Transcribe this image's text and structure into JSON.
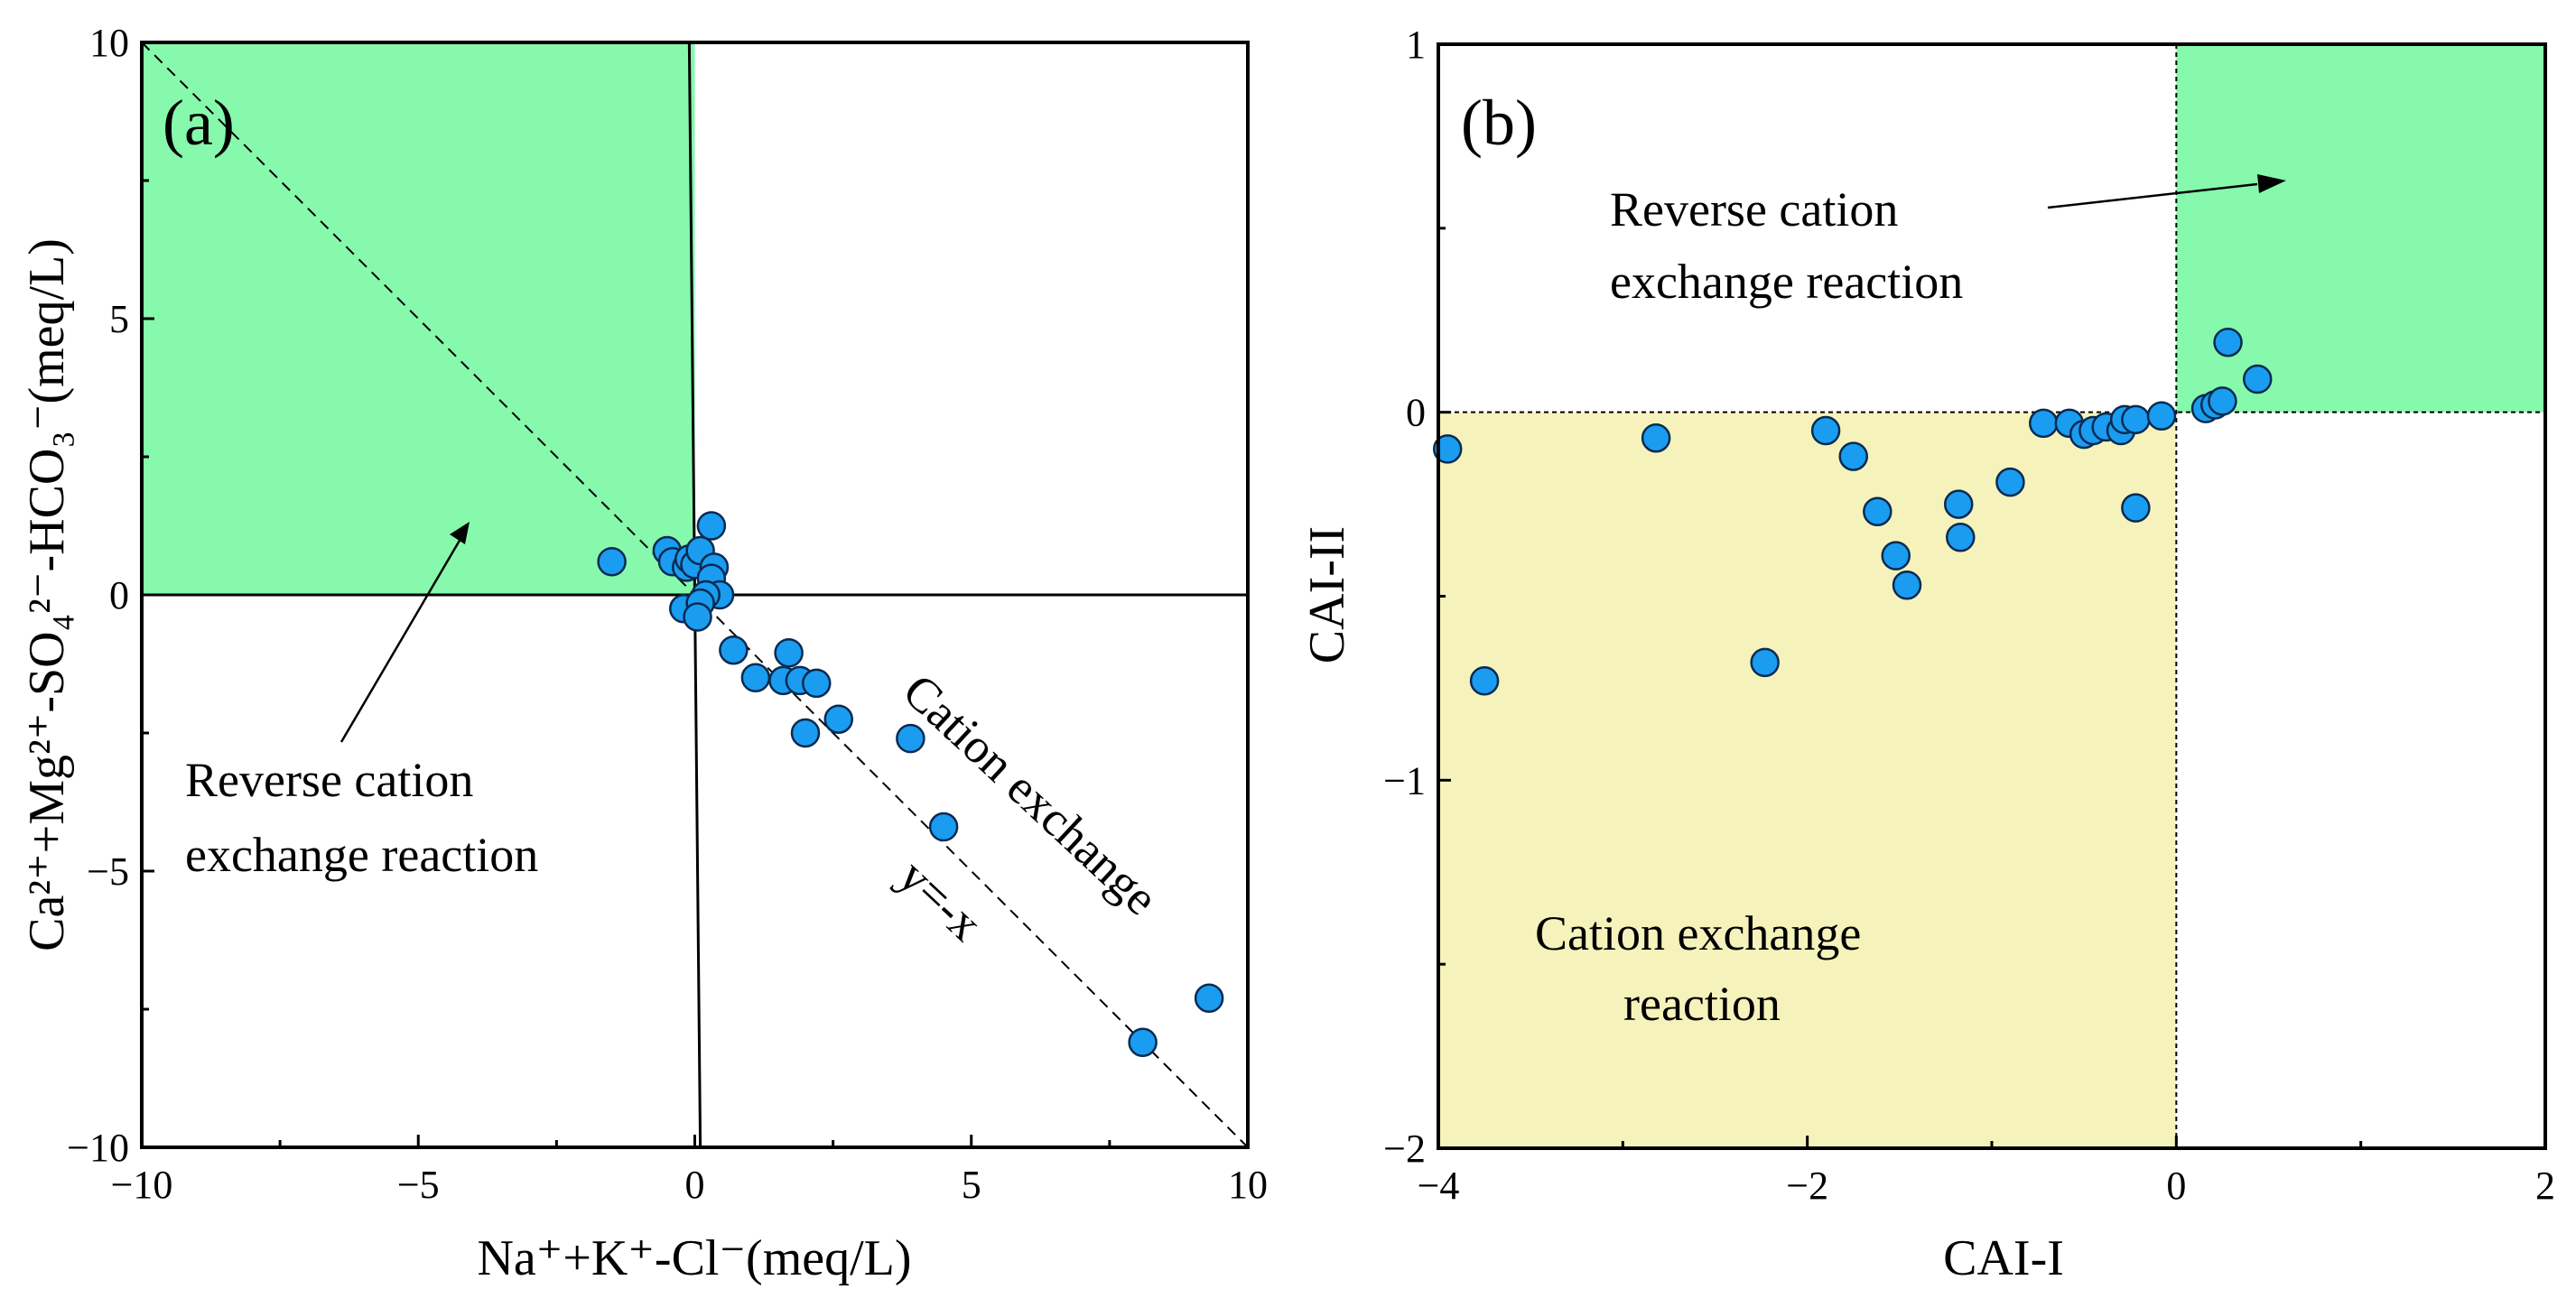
{
  "chart_data": [
    {
      "type": "scatter",
      "panel_label": "(a)",
      "xlabel": "Na⁺+K⁺-Cl⁻(meq/L)",
      "ylabel": "Ca²⁺+Mg²⁺-SO₄²⁻-HCO₃⁻(meq/L)",
      "xlim": [
        -10,
        10
      ],
      "ylim": [
        -10,
        10
      ],
      "xticks": [
        -10,
        -5,
        0,
        5,
        10
      ],
      "yticks": [
        -10,
        -5,
        0,
        5,
        10
      ],
      "xtick_labels": [
        "−10",
        "−5",
        "0",
        "5",
        "10"
      ],
      "ytick_labels": [
        "−10",
        "−5",
        "0",
        "5",
        "10"
      ],
      "shaded_region": {
        "x": [
          -10,
          0
        ],
        "y": [
          0,
          10
        ],
        "color": "#86f9ac"
      },
      "reference_line": {
        "label": "y=-x",
        "slope": -1,
        "intercept": 0,
        "style": "dashed"
      },
      "annotations": {
        "reverse_line1": "Reverse cation",
        "reverse_line2": "exchange reaction",
        "cation_exchange": "Cation exchange",
        "line_label": "y=-x"
      },
      "marker_color": "#1a9cf0",
      "points": [
        [
          -1.5,
          0.6
        ],
        [
          -0.5,
          0.8
        ],
        [
          -0.4,
          0.6
        ],
        [
          -0.15,
          0.5
        ],
        [
          -0.1,
          0.65
        ],
        [
          0.0,
          0.55
        ],
        [
          0.1,
          0.8
        ],
        [
          0.3,
          1.25
        ],
        [
          0.35,
          0.5
        ],
        [
          0.3,
          0.3
        ],
        [
          0.45,
          0.0
        ],
        [
          0.2,
          0.0
        ],
        [
          -0.2,
          -0.25
        ],
        [
          0.1,
          -0.15
        ],
        [
          0.05,
          -0.4
        ],
        [
          0.7,
          -1.0
        ],
        [
          1.1,
          -1.5
        ],
        [
          1.6,
          -1.55
        ],
        [
          1.7,
          -1.05
        ],
        [
          1.9,
          -1.55
        ],
        [
          2.2,
          -1.6
        ],
        [
          2.0,
          -2.5
        ],
        [
          2.6,
          -2.25
        ],
        [
          3.9,
          -2.6
        ],
        [
          4.5,
          -4.2
        ],
        [
          8.1,
          -8.1
        ],
        [
          9.3,
          -7.3
        ]
      ]
    },
    {
      "type": "scatter",
      "panel_label": "(b)",
      "xlabel": "CAI-I",
      "ylabel": "CAI-II",
      "xlim": [
        -4,
        2
      ],
      "ylim": [
        -2,
        1
      ],
      "xticks": [
        -4,
        -2,
        0,
        2
      ],
      "yticks": [
        -2,
        -1,
        0,
        1
      ],
      "xtick_labels": [
        "−4",
        "−2",
        "0",
        "2"
      ],
      "ytick_labels": [
        "−2",
        "−1",
        "0",
        "1"
      ],
      "shaded_regions": [
        {
          "x": [
            0,
            2
          ],
          "y": [
            0,
            1
          ],
          "color": "#86f9ac"
        },
        {
          "x": [
            -4,
            0
          ],
          "y": [
            -2,
            0
          ],
          "color": "#f5f3bb"
        }
      ],
      "annotations": {
        "reverse_line1": "Reverse cation",
        "reverse_line2": "exchange reaction",
        "cation_line1": "Cation exchange",
        "cation_line2": "reaction"
      },
      "marker_color": "#1a9cf0",
      "points": [
        [
          -3.95,
          -0.1
        ],
        [
          -3.75,
          -0.73
        ],
        [
          -2.82,
          -0.07
        ],
        [
          -2.23,
          -0.68
        ],
        [
          -1.9,
          -0.05
        ],
        [
          -1.75,
          -0.12
        ],
        [
          -1.62,
          -0.27
        ],
        [
          -1.52,
          -0.39
        ],
        [
          -1.46,
          -0.47
        ],
        [
          -1.18,
          -0.25
        ],
        [
          -1.17,
          -0.34
        ],
        [
          -0.9,
          -0.19
        ],
        [
          -0.72,
          -0.03
        ],
        [
          -0.58,
          -0.03
        ],
        [
          -0.5,
          -0.06
        ],
        [
          -0.45,
          -0.05
        ],
        [
          -0.38,
          -0.04
        ],
        [
          -0.3,
          -0.05
        ],
        [
          -0.28,
          -0.02
        ],
        [
          -0.22,
          -0.02
        ],
        [
          -0.08,
          -0.01
        ],
        [
          -0.22,
          -0.26
        ],
        [
          0.16,
          0.01
        ],
        [
          0.21,
          0.02
        ],
        [
          0.25,
          0.03
        ],
        [
          0.28,
          0.19
        ],
        [
          0.44,
          0.09
        ]
      ]
    }
  ]
}
